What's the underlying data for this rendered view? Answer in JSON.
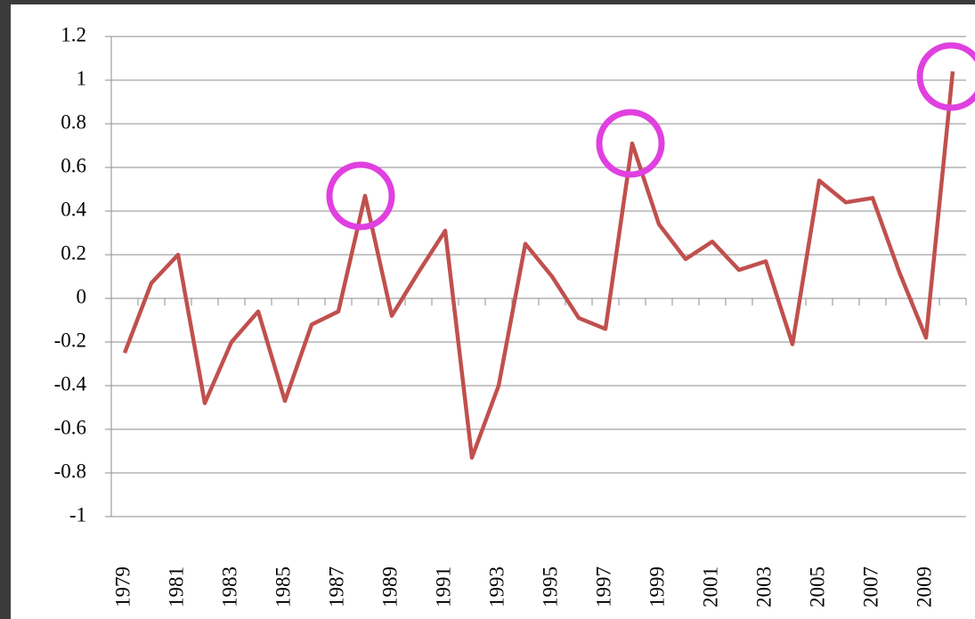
{
  "chart_data": {
    "type": "line",
    "categories": [
      "1979",
      null,
      "1981",
      null,
      "1983",
      null,
      "1985",
      null,
      "1987",
      null,
      "1989",
      null,
      "1991",
      null,
      "1993",
      null,
      "1995",
      null,
      "1997",
      null,
      "1999",
      null,
      "2001",
      null,
      "2003",
      null,
      "2005",
      null,
      "2007",
      null,
      "2009",
      null
    ],
    "series": [
      {
        "color": "#c0504d",
        "values": [
          -0.25,
          0.07,
          0.2,
          -0.48,
          -0.2,
          -0.06,
          -0.47,
          -0.12,
          -0.06,
          0.47,
          -0.08,
          0.12,
          0.31,
          -0.73,
          -0.4,
          0.25,
          0.1,
          -0.09,
          -0.14,
          0.71,
          0.34,
          0.18,
          0.26,
          0.13,
          0.17,
          -0.21,
          0.54,
          0.44,
          0.46,
          0.12,
          -0.18,
          1.04
        ]
      }
    ],
    "ylim": [
      -1,
      1.2
    ],
    "yticks": [
      -1,
      -0.8,
      -0.6,
      -0.4,
      -0.2,
      0,
      0.2,
      0.4,
      0.6,
      0.8,
      1,
      1.2
    ],
    "grid": true
  }
}
